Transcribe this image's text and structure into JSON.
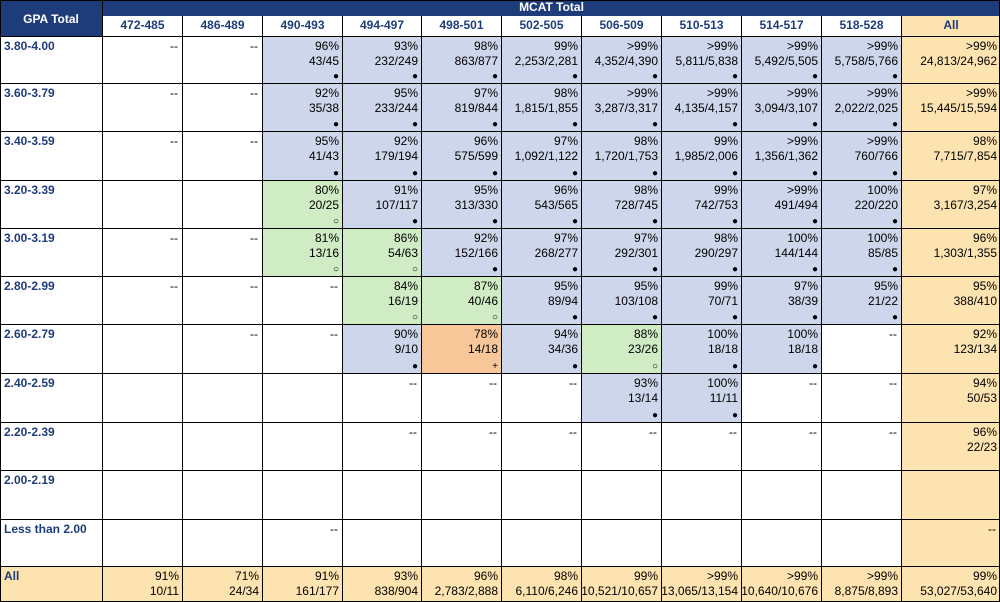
{
  "header": {
    "corner_label": "GPA Total",
    "mcat_label": "MCAT Total",
    "columns": [
      "472-485",
      "486-489",
      "490-493",
      "494-497",
      "498-501",
      "502-505",
      "506-509",
      "510-513",
      "514-517",
      "518-528",
      "All"
    ]
  },
  "colors": {
    "blue": "#cdd6ea",
    "green": "#cfecc4",
    "orange": "#f7c79a",
    "total": "#fce3b0",
    "header": "#1f3c7a"
  },
  "rows": [
    {
      "label": "3.80-4.00",
      "cells": [
        {
          "dash": "--"
        },
        {
          "dash": "--"
        },
        {
          "pct": "96%",
          "ratio": "43/45",
          "mark": "●",
          "bg": "blue"
        },
        {
          "pct": "93%",
          "ratio": "232/249",
          "mark": "●",
          "bg": "blue"
        },
        {
          "pct": "98%",
          "ratio": "863/877",
          "mark": "●",
          "bg": "blue"
        },
        {
          "pct": "99%",
          "ratio": "2,253/2,281",
          "mark": "●",
          "bg": "blue"
        },
        {
          "pct": ">99%",
          "ratio": "4,352/4,390",
          "mark": "●",
          "bg": "blue"
        },
        {
          "pct": ">99%",
          "ratio": "5,811/5,838",
          "mark": "●",
          "bg": "blue"
        },
        {
          "pct": ">99%",
          "ratio": "5,492/5,505",
          "mark": "●",
          "bg": "blue"
        },
        {
          "pct": ">99%",
          "ratio": "5,758/5,766",
          "mark": "●",
          "bg": "blue"
        },
        {
          "pct": ">99%",
          "ratio": "24,813/24,962",
          "bg": "total"
        }
      ]
    },
    {
      "label": "3.60-3.79",
      "cells": [
        {
          "dash": "--"
        },
        {
          "dash": "--"
        },
        {
          "pct": "92%",
          "ratio": "35/38",
          "mark": "●",
          "bg": "blue"
        },
        {
          "pct": "95%",
          "ratio": "233/244",
          "mark": "●",
          "bg": "blue"
        },
        {
          "pct": "97%",
          "ratio": "819/844",
          "mark": "●",
          "bg": "blue"
        },
        {
          "pct": "98%",
          "ratio": "1,815/1,855",
          "mark": "●",
          "bg": "blue"
        },
        {
          "pct": ">99%",
          "ratio": "3,287/3,317",
          "mark": "●",
          "bg": "blue"
        },
        {
          "pct": ">99%",
          "ratio": "4,135/4,157",
          "mark": "●",
          "bg": "blue"
        },
        {
          "pct": ">99%",
          "ratio": "3,094/3,107",
          "mark": "●",
          "bg": "blue"
        },
        {
          "pct": ">99%",
          "ratio": "2,022/2,025",
          "mark": "●",
          "bg": "blue"
        },
        {
          "pct": ">99%",
          "ratio": "15,445/15,594",
          "bg": "total"
        }
      ]
    },
    {
      "label": "3.40-3.59",
      "cells": [
        {
          "dash": "--"
        },
        {
          "dash": "--"
        },
        {
          "pct": "95%",
          "ratio": "41/43",
          "mark": "●",
          "bg": "blue"
        },
        {
          "pct": "92%",
          "ratio": "179/194",
          "mark": "●",
          "bg": "blue"
        },
        {
          "pct": "96%",
          "ratio": "575/599",
          "mark": "●",
          "bg": "blue"
        },
        {
          "pct": "97%",
          "ratio": "1,092/1,122",
          "mark": "●",
          "bg": "blue"
        },
        {
          "pct": "98%",
          "ratio": "1,720/1,753",
          "mark": "●",
          "bg": "blue"
        },
        {
          "pct": "99%",
          "ratio": "1,985/2,006",
          "mark": "●",
          "bg": "blue"
        },
        {
          "pct": ">99%",
          "ratio": "1,356/1,362",
          "mark": "●",
          "bg": "blue"
        },
        {
          "pct": ">99%",
          "ratio": "760/766",
          "mark": "●",
          "bg": "blue"
        },
        {
          "pct": "98%",
          "ratio": "7,715/7,854",
          "bg": "total"
        }
      ]
    },
    {
      "label": "3.20-3.39",
      "cells": [
        {},
        {},
        {
          "pct": "80%",
          "ratio": "20/25",
          "mark": "○",
          "bg": "green"
        },
        {
          "pct": "91%",
          "ratio": "107/117",
          "mark": "●",
          "bg": "blue"
        },
        {
          "pct": "95%",
          "ratio": "313/330",
          "mark": "●",
          "bg": "blue"
        },
        {
          "pct": "96%",
          "ratio": "543/565",
          "mark": "●",
          "bg": "blue"
        },
        {
          "pct": "98%",
          "ratio": "728/745",
          "mark": "●",
          "bg": "blue"
        },
        {
          "pct": "99%",
          "ratio": "742/753",
          "mark": "●",
          "bg": "blue"
        },
        {
          "pct": ">99%",
          "ratio": "491/494",
          "mark": "●",
          "bg": "blue"
        },
        {
          "pct": "100%",
          "ratio": "220/220",
          "mark": "●",
          "bg": "blue"
        },
        {
          "pct": "97%",
          "ratio": "3,167/3,254",
          "bg": "total"
        }
      ]
    },
    {
      "label": "3.00-3.19",
      "cells": [
        {
          "dash": "--"
        },
        {
          "dash": "--"
        },
        {
          "pct": "81%",
          "ratio": "13/16",
          "mark": "○",
          "bg": "green"
        },
        {
          "pct": "86%",
          "ratio": "54/63",
          "mark": "○",
          "bg": "green"
        },
        {
          "pct": "92%",
          "ratio": "152/166",
          "mark": "●",
          "bg": "blue"
        },
        {
          "pct": "97%",
          "ratio": "268/277",
          "mark": "●",
          "bg": "blue"
        },
        {
          "pct": "97%",
          "ratio": "292/301",
          "mark": "●",
          "bg": "blue"
        },
        {
          "pct": "98%",
          "ratio": "290/297",
          "mark": "●",
          "bg": "blue"
        },
        {
          "pct": "100%",
          "ratio": "144/144",
          "mark": "●",
          "bg": "blue"
        },
        {
          "pct": "100%",
          "ratio": "85/85",
          "mark": "●",
          "bg": "blue"
        },
        {
          "pct": "96%",
          "ratio": "1,303/1,355",
          "bg": "total"
        }
      ]
    },
    {
      "label": "2.80-2.99",
      "cells": [
        {
          "dash": "--"
        },
        {
          "dash": "--"
        },
        {
          "dash": "--"
        },
        {
          "pct": "84%",
          "ratio": "16/19",
          "mark": "○",
          "bg": "green"
        },
        {
          "pct": "87%",
          "ratio": "40/46",
          "mark": "○",
          "bg": "green"
        },
        {
          "pct": "95%",
          "ratio": "89/94",
          "mark": "●",
          "bg": "blue"
        },
        {
          "pct": "95%",
          "ratio": "103/108",
          "mark": "●",
          "bg": "blue"
        },
        {
          "pct": "99%",
          "ratio": "70/71",
          "mark": "●",
          "bg": "blue"
        },
        {
          "pct": "97%",
          "ratio": "38/39",
          "mark": "●",
          "bg": "blue"
        },
        {
          "pct": "95%",
          "ratio": "21/22",
          "mark": "●",
          "bg": "blue"
        },
        {
          "pct": "95%",
          "ratio": "388/410",
          "bg": "total"
        }
      ]
    },
    {
      "label": "2.60-2.79",
      "cells": [
        {},
        {
          "dash": "--"
        },
        {
          "dash": "--"
        },
        {
          "pct": "90%",
          "ratio": "9/10",
          "mark": "●",
          "bg": "blue"
        },
        {
          "pct": "78%",
          "ratio": "14/18",
          "mark": "+",
          "bg": "orange"
        },
        {
          "pct": "94%",
          "ratio": "34/36",
          "mark": "●",
          "bg": "blue"
        },
        {
          "pct": "88%",
          "ratio": "23/26",
          "mark": "○",
          "bg": "green"
        },
        {
          "pct": "100%",
          "ratio": "18/18",
          "mark": "●",
          "bg": "blue"
        },
        {
          "pct": "100%",
          "ratio": "18/18",
          "mark": "●",
          "bg": "blue"
        },
        {
          "dash": "--"
        },
        {
          "pct": "92%",
          "ratio": "123/134",
          "bg": "total"
        }
      ]
    },
    {
      "label": "2.40-2.59",
      "cells": [
        {},
        {},
        {},
        {
          "dash": "--"
        },
        {
          "dash": "--"
        },
        {
          "dash": "--"
        },
        {
          "pct": "93%",
          "ratio": "13/14",
          "mark": "●",
          "bg": "blue"
        },
        {
          "pct": "100%",
          "ratio": "11/11",
          "mark": "●",
          "bg": "blue"
        },
        {
          "dash": "--"
        },
        {
          "dash": "--"
        },
        {
          "pct": "94%",
          "ratio": "50/53",
          "bg": "total"
        }
      ]
    },
    {
      "label": "2.20-2.39",
      "cells": [
        {},
        {},
        {},
        {
          "dash": "--"
        },
        {
          "dash": "--"
        },
        {
          "dash": "--"
        },
        {
          "dash": "--"
        },
        {
          "dash": "--"
        },
        {
          "dash": "--"
        },
        {
          "dash": "--"
        },
        {
          "pct": "96%",
          "ratio": "22/23",
          "bg": "total"
        }
      ]
    },
    {
      "label": "2.00-2.19",
      "cells": [
        {},
        {},
        {},
        {},
        {},
        {},
        {},
        {},
        {},
        {},
        {
          "bg": "total"
        }
      ]
    },
    {
      "label": "Less than 2.00",
      "cells": [
        {},
        {},
        {
          "dash": "--"
        },
        {},
        {},
        {},
        {},
        {},
        {},
        {},
        {
          "dash": "--",
          "bg": "total"
        }
      ]
    }
  ],
  "all_row": {
    "label": "All",
    "cells": [
      {
        "pct": "91%",
        "ratio": "10/11"
      },
      {
        "pct": "71%",
        "ratio": "24/34"
      },
      {
        "pct": "91%",
        "ratio": "161/177"
      },
      {
        "pct": "93%",
        "ratio": "838/904"
      },
      {
        "pct": "96%",
        "ratio": "2,783/2,888"
      },
      {
        "pct": "98%",
        "ratio": "6,110/6,246"
      },
      {
        "pct": "99%",
        "ratio": "10,521/10,657"
      },
      {
        "pct": ">99%",
        "ratio": "13,065/13,154"
      },
      {
        "pct": ">99%",
        "ratio": "10,640/10,676"
      },
      {
        "pct": ">99%",
        "ratio": "8,875/8,893"
      },
      {
        "pct": "99%",
        "ratio": "53,027/53,640"
      }
    ]
  }
}
